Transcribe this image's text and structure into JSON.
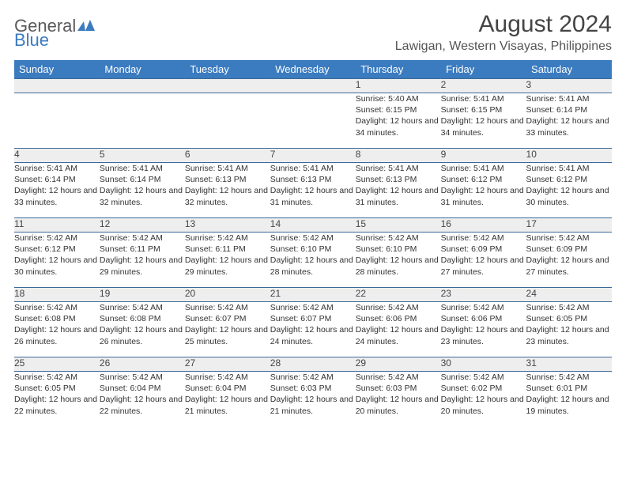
{
  "brand": {
    "part1": "General",
    "part2": "Blue"
  },
  "title": "August 2024",
  "location": "Lawigan, Western Visayas, Philippines",
  "colors": {
    "header_bg": "#3b7bbf",
    "header_text": "#ffffff",
    "daynum_bg": "#eeeeee",
    "row_border": "#3b6a9a",
    "body_text": "#333333",
    "title_text": "#444444"
  },
  "typography": {
    "title_fontsize": 30,
    "location_fontsize": 16,
    "dayheader_fontsize": 13,
    "daynum_fontsize": 12,
    "cell_fontsize": 10.5
  },
  "day_headers": [
    "Sunday",
    "Monday",
    "Tuesday",
    "Wednesday",
    "Thursday",
    "Friday",
    "Saturday"
  ],
  "weeks": [
    [
      null,
      null,
      null,
      null,
      {
        "n": "1",
        "sr": "5:40 AM",
        "ss": "6:15 PM",
        "dl": "12 hours and 34 minutes."
      },
      {
        "n": "2",
        "sr": "5:41 AM",
        "ss": "6:15 PM",
        "dl": "12 hours and 34 minutes."
      },
      {
        "n": "3",
        "sr": "5:41 AM",
        "ss": "6:14 PM",
        "dl": "12 hours and 33 minutes."
      }
    ],
    [
      {
        "n": "4",
        "sr": "5:41 AM",
        "ss": "6:14 PM",
        "dl": "12 hours and 33 minutes."
      },
      {
        "n": "5",
        "sr": "5:41 AM",
        "ss": "6:14 PM",
        "dl": "12 hours and 32 minutes."
      },
      {
        "n": "6",
        "sr": "5:41 AM",
        "ss": "6:13 PM",
        "dl": "12 hours and 32 minutes."
      },
      {
        "n": "7",
        "sr": "5:41 AM",
        "ss": "6:13 PM",
        "dl": "12 hours and 31 minutes."
      },
      {
        "n": "8",
        "sr": "5:41 AM",
        "ss": "6:13 PM",
        "dl": "12 hours and 31 minutes."
      },
      {
        "n": "9",
        "sr": "5:41 AM",
        "ss": "6:12 PM",
        "dl": "12 hours and 31 minutes."
      },
      {
        "n": "10",
        "sr": "5:41 AM",
        "ss": "6:12 PM",
        "dl": "12 hours and 30 minutes."
      }
    ],
    [
      {
        "n": "11",
        "sr": "5:42 AM",
        "ss": "6:12 PM",
        "dl": "12 hours and 30 minutes."
      },
      {
        "n": "12",
        "sr": "5:42 AM",
        "ss": "6:11 PM",
        "dl": "12 hours and 29 minutes."
      },
      {
        "n": "13",
        "sr": "5:42 AM",
        "ss": "6:11 PM",
        "dl": "12 hours and 29 minutes."
      },
      {
        "n": "14",
        "sr": "5:42 AM",
        "ss": "6:10 PM",
        "dl": "12 hours and 28 minutes."
      },
      {
        "n": "15",
        "sr": "5:42 AM",
        "ss": "6:10 PM",
        "dl": "12 hours and 28 minutes."
      },
      {
        "n": "16",
        "sr": "5:42 AM",
        "ss": "6:09 PM",
        "dl": "12 hours and 27 minutes."
      },
      {
        "n": "17",
        "sr": "5:42 AM",
        "ss": "6:09 PM",
        "dl": "12 hours and 27 minutes."
      }
    ],
    [
      {
        "n": "18",
        "sr": "5:42 AM",
        "ss": "6:08 PM",
        "dl": "12 hours and 26 minutes."
      },
      {
        "n": "19",
        "sr": "5:42 AM",
        "ss": "6:08 PM",
        "dl": "12 hours and 26 minutes."
      },
      {
        "n": "20",
        "sr": "5:42 AM",
        "ss": "6:07 PM",
        "dl": "12 hours and 25 minutes."
      },
      {
        "n": "21",
        "sr": "5:42 AM",
        "ss": "6:07 PM",
        "dl": "12 hours and 24 minutes."
      },
      {
        "n": "22",
        "sr": "5:42 AM",
        "ss": "6:06 PM",
        "dl": "12 hours and 24 minutes."
      },
      {
        "n": "23",
        "sr": "5:42 AM",
        "ss": "6:06 PM",
        "dl": "12 hours and 23 minutes."
      },
      {
        "n": "24",
        "sr": "5:42 AM",
        "ss": "6:05 PM",
        "dl": "12 hours and 23 minutes."
      }
    ],
    [
      {
        "n": "25",
        "sr": "5:42 AM",
        "ss": "6:05 PM",
        "dl": "12 hours and 22 minutes."
      },
      {
        "n": "26",
        "sr": "5:42 AM",
        "ss": "6:04 PM",
        "dl": "12 hours and 22 minutes."
      },
      {
        "n": "27",
        "sr": "5:42 AM",
        "ss": "6:04 PM",
        "dl": "12 hours and 21 minutes."
      },
      {
        "n": "28",
        "sr": "5:42 AM",
        "ss": "6:03 PM",
        "dl": "12 hours and 21 minutes."
      },
      {
        "n": "29",
        "sr": "5:42 AM",
        "ss": "6:03 PM",
        "dl": "12 hours and 20 minutes."
      },
      {
        "n": "30",
        "sr": "5:42 AM",
        "ss": "6:02 PM",
        "dl": "12 hours and 20 minutes."
      },
      {
        "n": "31",
        "sr": "5:42 AM",
        "ss": "6:01 PM",
        "dl": "12 hours and 19 minutes."
      }
    ]
  ],
  "labels": {
    "sunrise": "Sunrise: ",
    "sunset": "Sunset: ",
    "daylight": "Daylight: "
  }
}
